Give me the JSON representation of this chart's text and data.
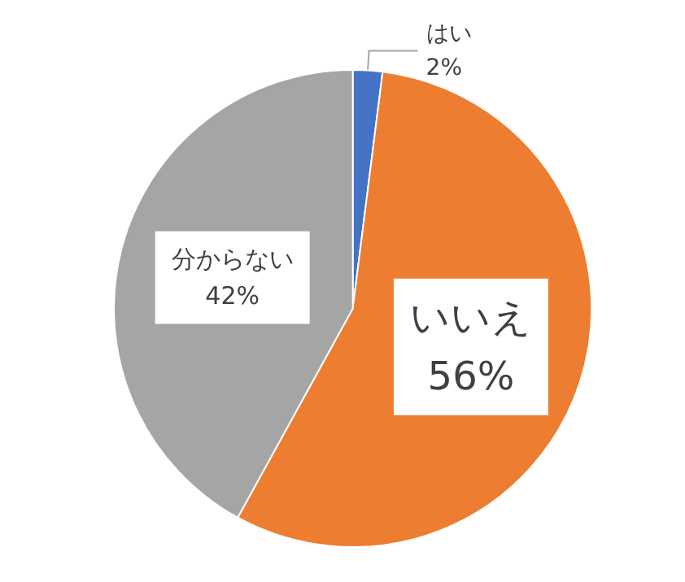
{
  "chart_data": {
    "type": "pie",
    "categories": [
      "はい",
      "いいえ",
      "分からない"
    ],
    "values": [
      2,
      56,
      42
    ],
    "colors": [
      "#4472c4",
      "#ed7d31",
      "#a5a5a5"
    ],
    "value_labels": [
      "2%",
      "56%",
      "42%"
    ],
    "legend": false
  }
}
